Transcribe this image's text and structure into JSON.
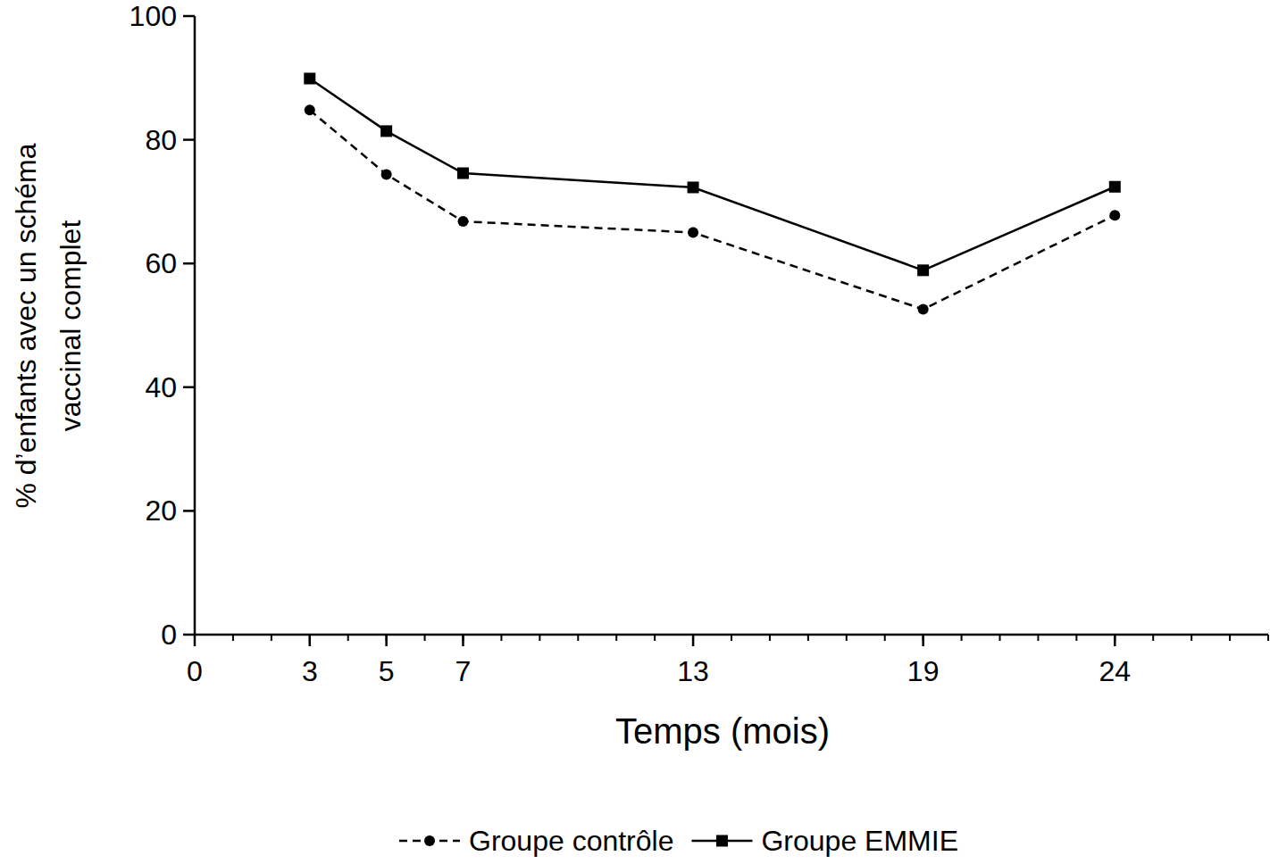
{
  "chart_data": {
    "type": "line",
    "x_label": "Temps (mois)",
    "y_label": [
      "% d’enfants avec un schéma",
      "vaccinal complet"
    ],
    "x": [
      3,
      5,
      7,
      13,
      19,
      24
    ],
    "series": [
      {
        "name": "Groupe contrôle",
        "color": "#000000",
        "line_style": "dashed",
        "marker": "circle",
        "values": [
          84.8,
          74.4,
          66.8,
          65.0,
          52.6,
          67.8
        ]
      },
      {
        "name": "Groupe EMMIE",
        "color": "#000000",
        "line_style": "solid",
        "marker": "square",
        "values": [
          89.9,
          81.4,
          74.6,
          72.3,
          58.9,
          72.4
        ]
      }
    ],
    "xlim": [
      0,
      28
    ],
    "xticks": [
      0,
      3,
      5,
      7,
      13,
      19,
      24
    ],
    "ylim": [
      0,
      100
    ],
    "yticks": [
      0,
      20,
      40,
      60,
      80,
      100
    ],
    "grid": false,
    "legend": "bottom"
  }
}
